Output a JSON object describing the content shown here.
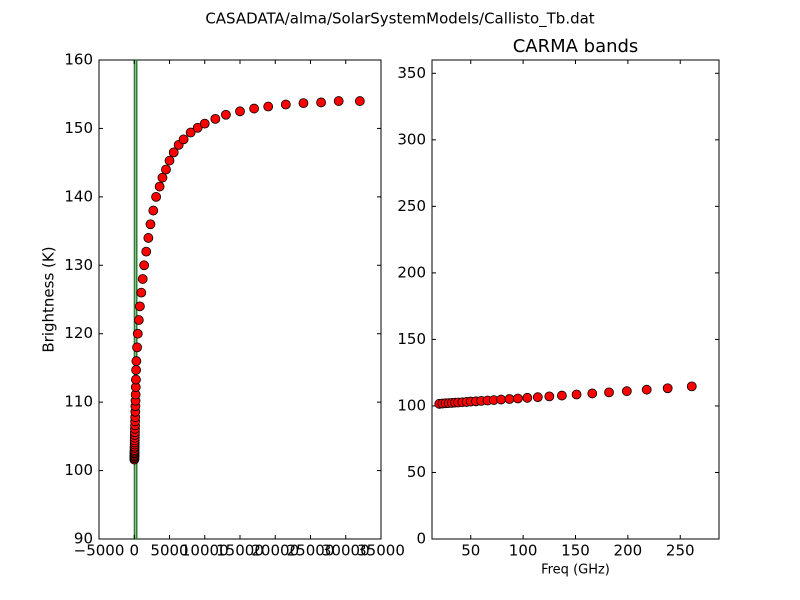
{
  "title": "CASADATA/alma/SolarSystemModels/Callisto_Tb.dat",
  "chart_data": [
    {
      "type": "scatter",
      "ylabel": "Brightness (K)",
      "xlim": [
        -5000,
        35000
      ],
      "xticks": [
        {
          "value": -5000,
          "label": "−5000"
        },
        0,
        5000,
        10000,
        15000,
        20000,
        25000,
        30000,
        35000
      ],
      "ylim": [
        90,
        160
      ],
      "yticks": [
        90,
        100,
        110,
        120,
        130,
        140,
        150,
        160
      ],
      "vspan": [
        27,
        355
      ],
      "vspan_color": "#2e7d32",
      "color": "#ff0000",
      "x": [
        20,
        23,
        26,
        29,
        32,
        35,
        38,
        42,
        46,
        50,
        55,
        60,
        66,
        72,
        79,
        87,
        95,
        104,
        114,
        125,
        137,
        151,
        166,
        182,
        199,
        218,
        238,
        261,
        300,
        400,
        500,
        650,
        800,
        1000,
        1200,
        1400,
        1700,
        2000,
        2300,
        2700,
        3100,
        3600,
        4000,
        4500,
        5000,
        5600,
        6300,
        7000,
        8000,
        9000,
        10000,
        11500,
        13000,
        15000,
        17000,
        19000,
        21500,
        24000,
        26500,
        29000,
        32000
      ],
      "values": [
        101.6,
        101.8,
        102.0,
        102.1,
        102.3,
        102.5,
        102.6,
        102.8,
        103.0,
        103.3,
        103.5,
        103.8,
        104.1,
        104.4,
        104.8,
        105.2,
        105.6,
        106.1,
        106.6,
        107.2,
        107.8,
        108.6,
        109.4,
        110.2,
        111.1,
        112.2,
        113.3,
        114.7,
        116,
        118,
        120,
        122,
        124,
        126,
        128,
        130,
        132,
        134,
        136,
        138,
        140,
        141.5,
        142.8,
        144,
        145.3,
        146.5,
        147.6,
        148.4,
        149.4,
        150.1,
        150.7,
        151.4,
        152,
        152.5,
        152.9,
        153.2,
        153.5,
        153.7,
        153.8,
        154,
        154
      ]
    },
    {
      "type": "scatter",
      "title": "CARMA bands",
      "xlabel": "Freq (GHz)",
      "xlim": [
        13,
        287
      ],
      "xticks": [
        50,
        100,
        150,
        200,
        250
      ],
      "ylim": [
        0,
        360
      ],
      "yticks": [
        0,
        50,
        100,
        150,
        200,
        250,
        300,
        350
      ],
      "color": "#ff0000",
      "x": [
        20,
        23,
        26,
        29,
        32,
        35,
        38,
        42,
        46,
        50,
        55,
        60,
        66,
        72,
        79,
        87,
        95,
        104,
        114,
        125,
        137,
        151,
        166,
        182,
        199,
        218,
        238,
        261
      ],
      "values": [
        101.6,
        101.8,
        102.0,
        102.1,
        102.3,
        102.5,
        102.6,
        102.8,
        103.0,
        103.3,
        103.5,
        103.8,
        104.1,
        104.4,
        104.8,
        105.2,
        105.6,
        106.1,
        106.6,
        107.2,
        107.8,
        108.6,
        109.4,
        110.2,
        111.1,
        112.2,
        113.3,
        114.7
      ]
    }
  ]
}
